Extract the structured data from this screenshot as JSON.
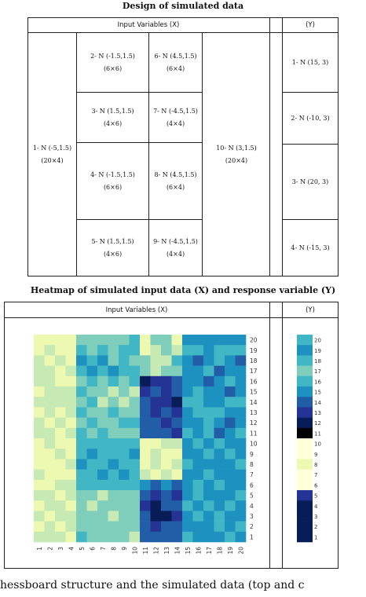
{
  "design": {
    "title": "Design of simulated data",
    "input_header": "Input Variables (X)",
    "y_header": "(Y)",
    "cells": {
      "c1": {
        "label": "1- N (-5,1.5)",
        "dim": "(20×4)"
      },
      "c2": {
        "label": "2- N (-1.5,1.5)",
        "dim": "(6×6)"
      },
      "c3": {
        "label": "3- N (1.5,1.5)",
        "dim": "(4×6)"
      },
      "c4": {
        "label": "4- N (-1.5,1.5)",
        "dim": "(6×6)"
      },
      "c5": {
        "label": "5- N (1.5,1.5)",
        "dim": "(4×6)"
      },
      "c6": {
        "label": "6- N (4.5,1.5)",
        "dim": "(6×4)"
      },
      "c7": {
        "label": "7- N (-4.5,1.5)",
        "dim": "(4×4)"
      },
      "c8": {
        "label": "8- N (4.5,1.5)",
        "dim": "(6×4)"
      },
      "c9": {
        "label": "9- N (-4.5,1.5)",
        "dim": "(4×4)"
      },
      "c10": {
        "label": "10- N (3,1.5)",
        "dim": "(20×4)"
      }
    },
    "y_cells": [
      "1- N (15, 3)",
      "2- N (-10, 3)",
      "3- N (20, 3)",
      "4- N (-15, 3)"
    ]
  },
  "heatmap": {
    "title": "Heatmap of simulated input data (X) and response variable (Y)",
    "input_header": "Input Variables (X)",
    "y_header": "(Y)",
    "x_ticks": [
      "1",
      "2",
      "3",
      "4",
      "5",
      "6",
      "7",
      "8",
      "9",
      "10",
      "11",
      "12",
      "13",
      "14",
      "15",
      "16",
      "17",
      "18",
      "19",
      "20"
    ],
    "y_ticks": [
      "1",
      "2",
      "3",
      "4",
      "5",
      "6",
      "7",
      "8",
      "9",
      "10",
      "11",
      "12",
      "13",
      "14",
      "15",
      "16",
      "17",
      "18",
      "19",
      "20"
    ],
    "y_strip_labels": [
      "1",
      "2",
      "3",
      "4",
      "5",
      "6",
      "7",
      "8",
      "9",
      "10",
      "11",
      "12",
      "13",
      "14",
      "15",
      "16",
      "17",
      "18",
      "19",
      "20"
    ],
    "palette": [
      "#ffffd9",
      "#edf8b1",
      "#c7e9b4",
      "#7fcdbb",
      "#41b6c4",
      "#1d91c0",
      "#225ea8",
      "#253494",
      "#081d58"
    ],
    "x_grid": [
      [
        1,
        1,
        1,
        1,
        3,
        3,
        3,
        3,
        3,
        4,
        1,
        3,
        3,
        1,
        5,
        5,
        5,
        5,
        5,
        5
      ],
      [
        1,
        2,
        1,
        1,
        4,
        3,
        4,
        3,
        4,
        4,
        1,
        2,
        3,
        2,
        4,
        4,
        5,
        4,
        4,
        4
      ],
      [
        2,
        1,
        2,
        1,
        5,
        4,
        5,
        3,
        4,
        3,
        3,
        2,
        2,
        4,
        5,
        6,
        5,
        4,
        5,
        6
      ],
      [
        2,
        2,
        1,
        2,
        4,
        5,
        4,
        5,
        4,
        4,
        3,
        2,
        3,
        3,
        5,
        5,
        4,
        6,
        5,
        5
      ],
      [
        2,
        2,
        1,
        1,
        3,
        4,
        3,
        4,
        3,
        4,
        8,
        7,
        7,
        6,
        5,
        5,
        6,
        5,
        4,
        5
      ],
      [
        1,
        2,
        2,
        2,
        4,
        3,
        3,
        2,
        3,
        2,
        7,
        6,
        7,
        6,
        5,
        4,
        5,
        5,
        6,
        5
      ],
      [
        2,
        2,
        2,
        2,
        3,
        4,
        2,
        3,
        2,
        3,
        6,
        7,
        7,
        8,
        4,
        4,
        5,
        5,
        4,
        4
      ],
      [
        1,
        2,
        1,
        2,
        4,
        3,
        3,
        4,
        3,
        3,
        6,
        7,
        6,
        7,
        5,
        4,
        4,
        4,
        5,
        5
      ],
      [
        2,
        1,
        2,
        1,
        3,
        4,
        3,
        3,
        4,
        4,
        6,
        6,
        7,
        6,
        5,
        5,
        4,
        5,
        6,
        5
      ],
      [
        2,
        2,
        1,
        2,
        4,
        3,
        4,
        3,
        3,
        3,
        6,
        6,
        6,
        7,
        4,
        5,
        4,
        6,
        5,
        4
      ],
      [
        1,
        2,
        1,
        1,
        4,
        4,
        4,
        4,
        4,
        4,
        1,
        1,
        2,
        2,
        5,
        4,
        5,
        4,
        5,
        5
      ],
      [
        1,
        1,
        2,
        1,
        4,
        5,
        4,
        4,
        4,
        5,
        1,
        2,
        1,
        1,
        5,
        5,
        4,
        5,
        4,
        5
      ],
      [
        1,
        1,
        1,
        2,
        5,
        4,
        4,
        5,
        4,
        4,
        1,
        2,
        1,
        2,
        4,
        5,
        5,
        5,
        5,
        4
      ],
      [
        2,
        1,
        1,
        1,
        4,
        4,
        5,
        4,
        5,
        4,
        2,
        1,
        2,
        1,
        5,
        5,
        4,
        5,
        5,
        5
      ],
      [
        1,
        1,
        2,
        2,
        4,
        4,
        4,
        4,
        4,
        4,
        5,
        6,
        5,
        6,
        5,
        4,
        5,
        4,
        5,
        5
      ],
      [
        2,
        2,
        1,
        2,
        3,
        3,
        2,
        3,
        3,
        3,
        6,
        7,
        6,
        7,
        5,
        4,
        5,
        5,
        5,
        4
      ],
      [
        1,
        2,
        2,
        1,
        3,
        2,
        3,
        3,
        3,
        3,
        7,
        8,
        6,
        6,
        4,
        5,
        4,
        5,
        4,
        5
      ],
      [
        2,
        1,
        2,
        2,
        3,
        3,
        3,
        2,
        3,
        3,
        6,
        8,
        8,
        7,
        5,
        4,
        5,
        4,
        5,
        5
      ],
      [
        1,
        2,
        1,
        2,
        3,
        3,
        3,
        3,
        3,
        3,
        6,
        7,
        6,
        6,
        5,
        5,
        5,
        4,
        5,
        4
      ],
      [
        2,
        2,
        2,
        1,
        4,
        3,
        3,
        3,
        3,
        2,
        6,
        6,
        6,
        6,
        4,
        5,
        5,
        5,
        4,
        5
      ]
    ],
    "y_grid": [
      4,
      5,
      4,
      3,
      4,
      5,
      6,
      7,
      8,
      9,
      0,
      0,
      1,
      0,
      0,
      7,
      8,
      8,
      8,
      8
    ]
  }
}
